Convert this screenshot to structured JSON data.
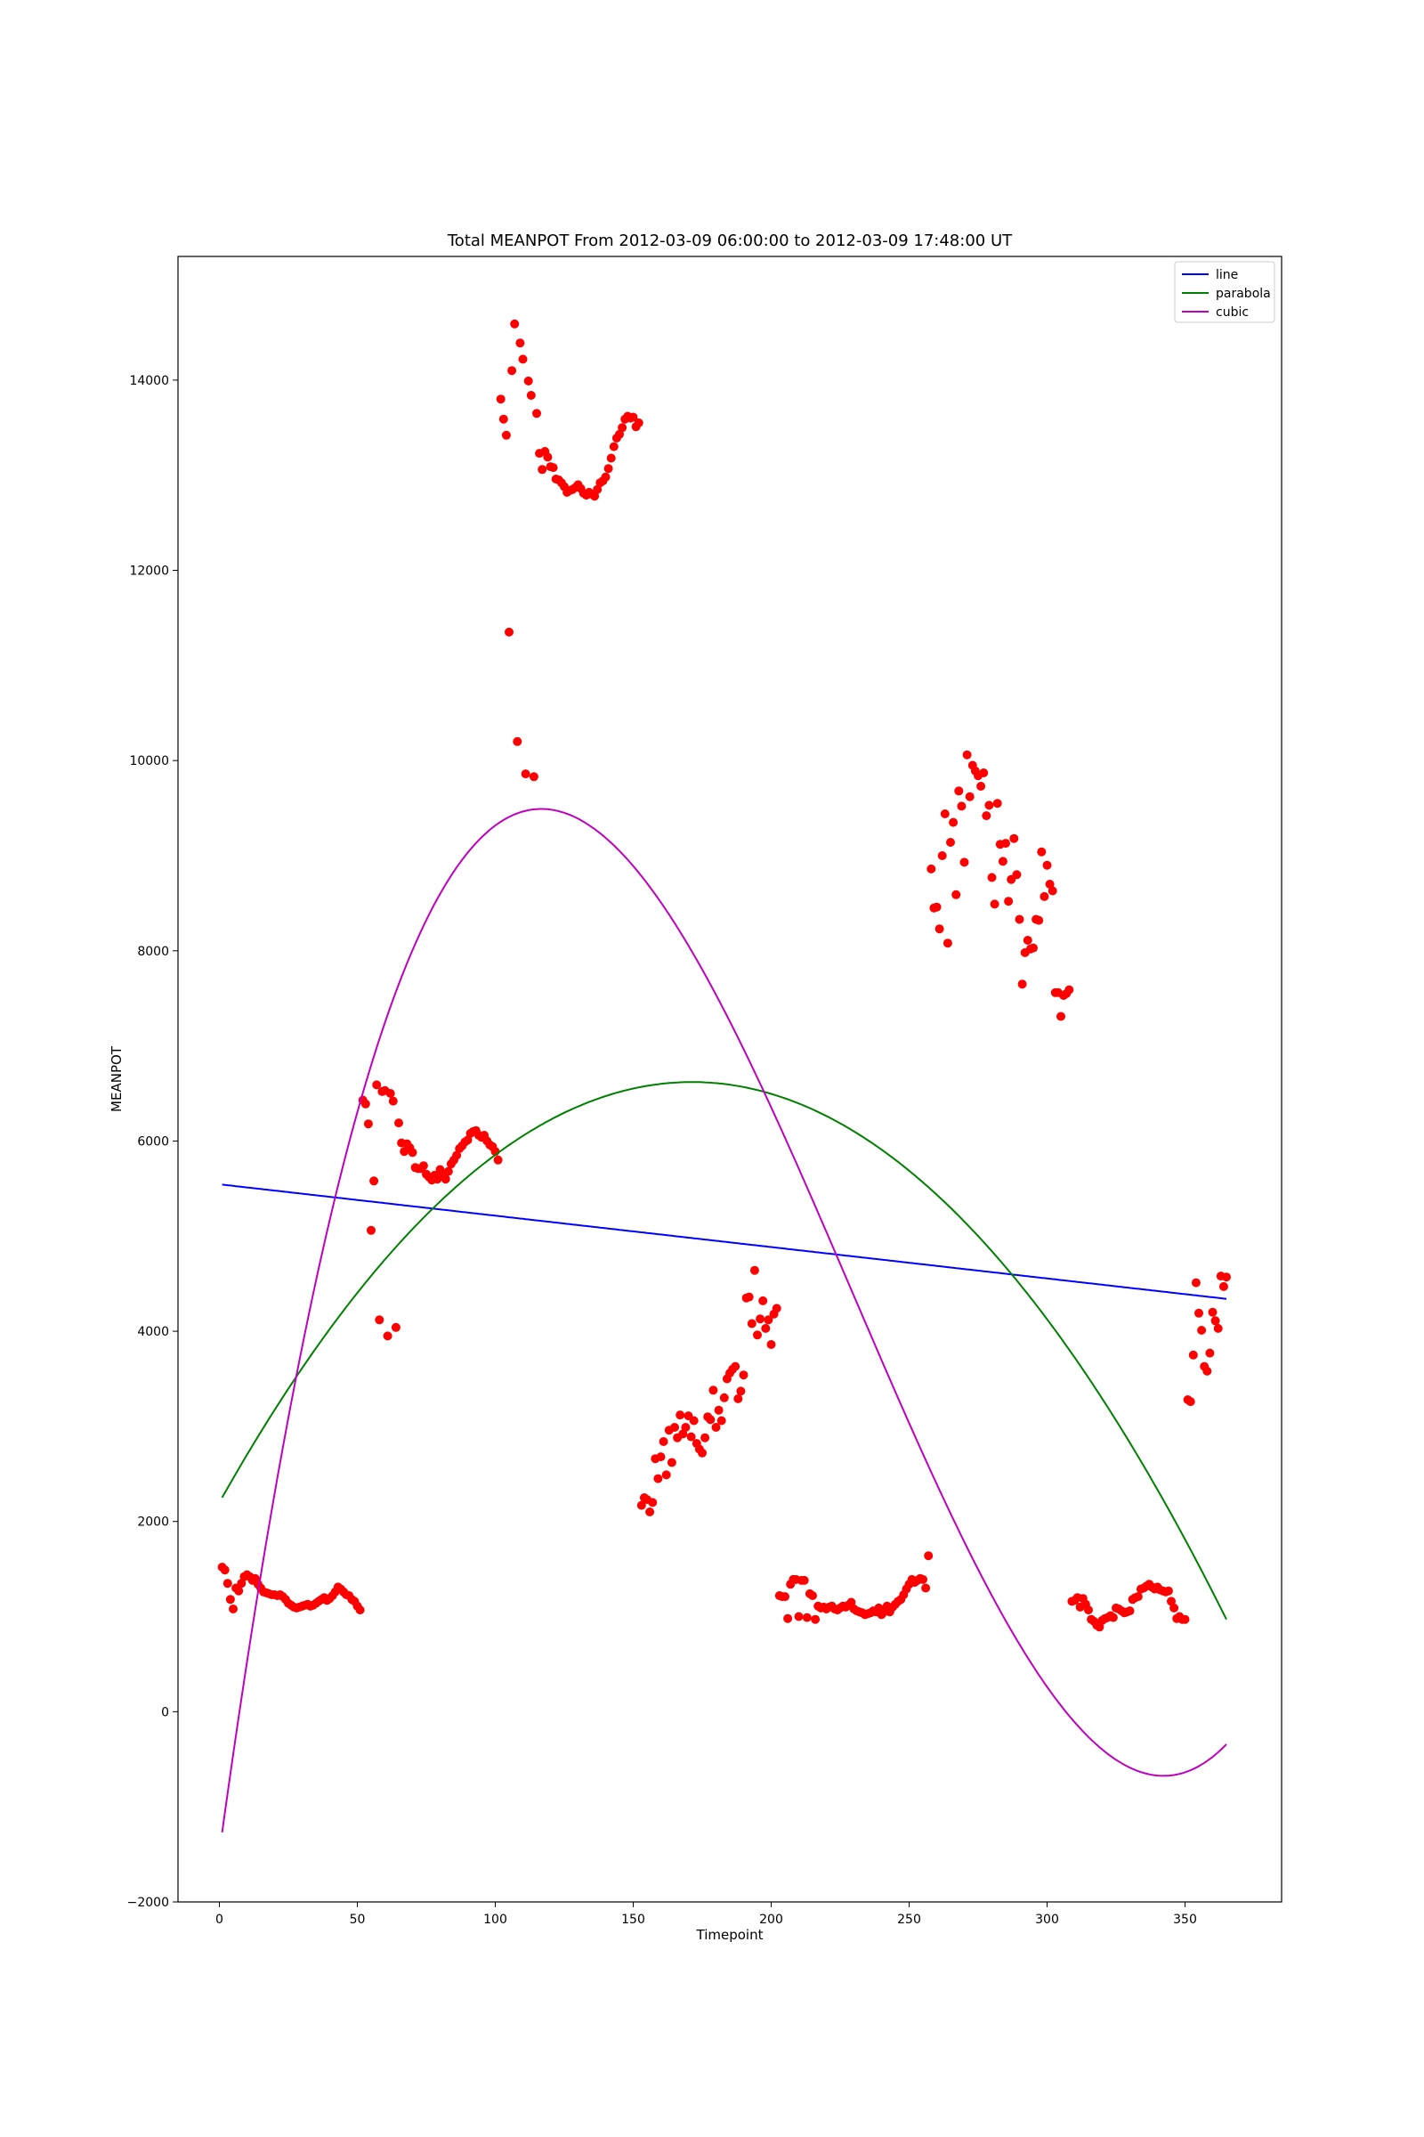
{
  "chart_data": {
    "type": "scatter",
    "title": "Total MEANPOT From 2012-03-09 06:00:00 to 2012-03-09 17:48:00 UT",
    "xlabel": "Timepoint",
    "ylabel": "MEANPOT",
    "xlim": [
      -15,
      385
    ],
    "ylim": [
      -2000,
      15300
    ],
    "xticks": [
      0,
      50,
      100,
      150,
      200,
      250,
      300,
      350
    ],
    "yticks": [
      -2000,
      0,
      2000,
      4000,
      6000,
      8000,
      10000,
      12000,
      14000
    ],
    "xtick_labels": [
      "0",
      "50",
      "100",
      "150",
      "200",
      "250",
      "300",
      "350"
    ],
    "ytick_labels": [
      "−2000",
      "0",
      "2000",
      "4000",
      "6000",
      "8000",
      "10000",
      "12000",
      "14000"
    ],
    "grid": false,
    "legend_position": "top-right",
    "scatter_color": "#ff0000",
    "points": [
      [
        1,
        1520
      ],
      [
        2,
        1490
      ],
      [
        3,
        1350
      ],
      [
        4,
        1180
      ],
      [
        5,
        1080
      ],
      [
        6,
        1300
      ],
      [
        7,
        1270
      ],
      [
        8,
        1350
      ],
      [
        9,
        1420
      ],
      [
        10,
        1440
      ],
      [
        11,
        1420
      ],
      [
        12,
        1380
      ],
      [
        13,
        1400
      ],
      [
        14,
        1340
      ],
      [
        15,
        1300
      ],
      [
        16,
        1260
      ],
      [
        17,
        1250
      ],
      [
        18,
        1240
      ],
      [
        19,
        1230
      ],
      [
        20,
        1230
      ],
      [
        21,
        1220
      ],
      [
        22,
        1230
      ],
      [
        23,
        1210
      ],
      [
        24,
        1180
      ],
      [
        25,
        1140
      ],
      [
        26,
        1120
      ],
      [
        27,
        1100
      ],
      [
        28,
        1090
      ],
      [
        29,
        1100
      ],
      [
        30,
        1110
      ],
      [
        31,
        1120
      ],
      [
        32,
        1130
      ],
      [
        33,
        1110
      ],
      [
        34,
        1120
      ],
      [
        35,
        1140
      ],
      [
        36,
        1160
      ],
      [
        37,
        1180
      ],
      [
        38,
        1200
      ],
      [
        39,
        1170
      ],
      [
        40,
        1190
      ],
      [
        41,
        1220
      ],
      [
        42,
        1260
      ],
      [
        43,
        1310
      ],
      [
        44,
        1290
      ],
      [
        45,
        1260
      ],
      [
        46,
        1230
      ],
      [
        47,
        1220
      ],
      [
        48,
        1180
      ],
      [
        49,
        1160
      ],
      [
        50,
        1110
      ],
      [
        51,
        1070
      ],
      [
        52,
        6430
      ],
      [
        53,
        6390
      ],
      [
        54,
        6180
      ],
      [
        55,
        5060
      ],
      [
        56,
        5580
      ],
      [
        57,
        6590
      ],
      [
        58,
        4120
      ],
      [
        59,
        6520
      ],
      [
        60,
        6530
      ],
      [
        61,
        3950
      ],
      [
        62,
        6500
      ],
      [
        63,
        6420
      ],
      [
        64,
        4040
      ],
      [
        65,
        6190
      ],
      [
        66,
        5980
      ],
      [
        67,
        5890
      ],
      [
        68,
        5970
      ],
      [
        69,
        5930
      ],
      [
        70,
        5880
      ],
      [
        71,
        5720
      ],
      [
        72,
        5710
      ],
      [
        73,
        5710
      ],
      [
        74,
        5740
      ],
      [
        75,
        5650
      ],
      [
        76,
        5620
      ],
      [
        77,
        5590
      ],
      [
        78,
        5640
      ],
      [
        79,
        5600
      ],
      [
        80,
        5700
      ],
      [
        81,
        5650
      ],
      [
        82,
        5600
      ],
      [
        83,
        5680
      ],
      [
        84,
        5760
      ],
      [
        85,
        5800
      ],
      [
        86,
        5850
      ],
      [
        87,
        5920
      ],
      [
        88,
        5950
      ],
      [
        89,
        5990
      ],
      [
        90,
        6010
      ],
      [
        91,
        6080
      ],
      [
        92,
        6100
      ],
      [
        93,
        6110
      ],
      [
        94,
        6060
      ],
      [
        95,
        6040
      ],
      [
        96,
        6060
      ],
      [
        97,
        6000
      ],
      [
        98,
        5960
      ],
      [
        99,
        5940
      ],
      [
        100,
        5890
      ],
      [
        101,
        5800
      ],
      [
        102,
        13800
      ],
      [
        103,
        13590
      ],
      [
        104,
        13420
      ],
      [
        105,
        11350
      ],
      [
        106,
        14100
      ],
      [
        107,
        14590
      ],
      [
        108,
        10200
      ],
      [
        109,
        14390
      ],
      [
        110,
        14220
      ],
      [
        111,
        9860
      ],
      [
        112,
        13990
      ],
      [
        113,
        13840
      ],
      [
        114,
        9830
      ],
      [
        115,
        13650
      ],
      [
        116,
        13230
      ],
      [
        117,
        13060
      ],
      [
        118,
        13250
      ],
      [
        119,
        13190
      ],
      [
        120,
        13090
      ],
      [
        121,
        13080
      ],
      [
        122,
        12960
      ],
      [
        123,
        12950
      ],
      [
        124,
        12920
      ],
      [
        125,
        12880
      ],
      [
        126,
        12820
      ],
      [
        127,
        12840
      ],
      [
        128,
        12850
      ],
      [
        129,
        12870
      ],
      [
        130,
        12900
      ],
      [
        131,
        12860
      ],
      [
        132,
        12810
      ],
      [
        133,
        12790
      ],
      [
        134,
        12820
      ],
      [
        135,
        12800
      ],
      [
        136,
        12780
      ],
      [
        137,
        12850
      ],
      [
        138,
        12920
      ],
      [
        139,
        12940
      ],
      [
        140,
        12980
      ],
      [
        141,
        13070
      ],
      [
        142,
        13180
      ],
      [
        143,
        13300
      ],
      [
        144,
        13390
      ],
      [
        145,
        13430
      ],
      [
        146,
        13500
      ],
      [
        147,
        13590
      ],
      [
        148,
        13620
      ],
      [
        149,
        13600
      ],
      [
        150,
        13610
      ],
      [
        151,
        13510
      ],
      [
        152,
        13550
      ],
      [
        153,
        2170
      ],
      [
        154,
        2250
      ],
      [
        155,
        2230
      ],
      [
        156,
        2100
      ],
      [
        157,
        2200
      ],
      [
        158,
        2660
      ],
      [
        159,
        2450
      ],
      [
        160,
        2680
      ],
      [
        161,
        2840
      ],
      [
        162,
        2490
      ],
      [
        163,
        2960
      ],
      [
        164,
        2620
      ],
      [
        165,
        2990
      ],
      [
        166,
        2880
      ],
      [
        167,
        3120
      ],
      [
        168,
        2920
      ],
      [
        169,
        2990
      ],
      [
        170,
        3110
      ],
      [
        171,
        2890
      ],
      [
        172,
        3060
      ],
      [
        173,
        2820
      ],
      [
        174,
        2760
      ],
      [
        175,
        2720
      ],
      [
        176,
        2880
      ],
      [
        177,
        3100
      ],
      [
        178,
        3070
      ],
      [
        179,
        3380
      ],
      [
        180,
        2990
      ],
      [
        181,
        3170
      ],
      [
        182,
        3060
      ],
      [
        183,
        3300
      ],
      [
        184,
        3500
      ],
      [
        185,
        3560
      ],
      [
        186,
        3600
      ],
      [
        187,
        3630
      ],
      [
        188,
        3290
      ],
      [
        189,
        3370
      ],
      [
        190,
        3540
      ],
      [
        191,
        4350
      ],
      [
        192,
        4360
      ],
      [
        193,
        4080
      ],
      [
        194,
        4640
      ],
      [
        195,
        3960
      ],
      [
        196,
        4130
      ],
      [
        197,
        4320
      ],
      [
        198,
        4030
      ],
      [
        199,
        4120
      ],
      [
        200,
        3860
      ],
      [
        201,
        4180
      ],
      [
        202,
        4240
      ],
      [
        203,
        1220
      ],
      [
        204,
        1210
      ],
      [
        205,
        1210
      ],
      [
        206,
        980
      ],
      [
        207,
        1340
      ],
      [
        208,
        1390
      ],
      [
        209,
        1390
      ],
      [
        210,
        1000
      ],
      [
        211,
        1380
      ],
      [
        212,
        1380
      ],
      [
        213,
        990
      ],
      [
        214,
        1240
      ],
      [
        215,
        1220
      ],
      [
        216,
        970
      ],
      [
        217,
        1110
      ],
      [
        218,
        1090
      ],
      [
        219,
        1100
      ],
      [
        220,
        1080
      ],
      [
        221,
        1100
      ],
      [
        222,
        1110
      ],
      [
        223,
        1080
      ],
      [
        224,
        1070
      ],
      [
        225,
        1090
      ],
      [
        226,
        1110
      ],
      [
        227,
        1100
      ],
      [
        228,
        1120
      ],
      [
        229,
        1150
      ],
      [
        230,
        1080
      ],
      [
        231,
        1060
      ],
      [
        232,
        1050
      ],
      [
        233,
        1040
      ],
      [
        234,
        1020
      ],
      [
        235,
        1030
      ],
      [
        236,
        1040
      ],
      [
        237,
        1060
      ],
      [
        238,
        1050
      ],
      [
        239,
        1090
      ],
      [
        240,
        1020
      ],
      [
        241,
        1050
      ],
      [
        242,
        1110
      ],
      [
        243,
        1050
      ],
      [
        244,
        1100
      ],
      [
        245,
        1130
      ],
      [
        246,
        1160
      ],
      [
        247,
        1180
      ],
      [
        248,
        1230
      ],
      [
        249,
        1290
      ],
      [
        250,
        1340
      ],
      [
        251,
        1390
      ],
      [
        252,
        1360
      ],
      [
        253,
        1380
      ],
      [
        254,
        1400
      ],
      [
        255,
        1390
      ],
      [
        256,
        1300
      ],
      [
        257,
        1640
      ],
      [
        258,
        8860
      ],
      [
        259,
        8450
      ],
      [
        260,
        8460
      ],
      [
        261,
        8230
      ],
      [
        262,
        9000
      ],
      [
        263,
        9440
      ],
      [
        264,
        8080
      ],
      [
        265,
        9140
      ],
      [
        266,
        9350
      ],
      [
        267,
        8590
      ],
      [
        268,
        9680
      ],
      [
        269,
        9520
      ],
      [
        270,
        8930
      ],
      [
        271,
        10060
      ],
      [
        272,
        9620
      ],
      [
        273,
        9950
      ],
      [
        274,
        9890
      ],
      [
        275,
        9840
      ],
      [
        276,
        9730
      ],
      [
        277,
        9870
      ],
      [
        278,
        9420
      ],
      [
        279,
        9530
      ],
      [
        280,
        8770
      ],
      [
        281,
        8490
      ],
      [
        282,
        9550
      ],
      [
        283,
        9120
      ],
      [
        284,
        8940
      ],
      [
        285,
        9130
      ],
      [
        286,
        8520
      ],
      [
        287,
        8750
      ],
      [
        288,
        9180
      ],
      [
        289,
        8800
      ],
      [
        290,
        8330
      ],
      [
        291,
        7650
      ],
      [
        292,
        7980
      ],
      [
        293,
        8110
      ],
      [
        294,
        8020
      ],
      [
        295,
        8030
      ],
      [
        296,
        8330
      ],
      [
        297,
        8320
      ],
      [
        298,
        9040
      ],
      [
        299,
        8570
      ],
      [
        300,
        8900
      ],
      [
        301,
        8700
      ],
      [
        302,
        8630
      ],
      [
        303,
        7560
      ],
      [
        304,
        7560
      ],
      [
        305,
        7310
      ],
      [
        306,
        7530
      ],
      [
        307,
        7550
      ],
      [
        308,
        7590
      ],
      [
        309,
        1160
      ],
      [
        310,
        1170
      ],
      [
        311,
        1200
      ],
      [
        312,
        1100
      ],
      [
        313,
        1190
      ],
      [
        314,
        1130
      ],
      [
        315,
        1070
      ],
      [
        316,
        970
      ],
      [
        317,
        950
      ],
      [
        318,
        910
      ],
      [
        319,
        890
      ],
      [
        320,
        960
      ],
      [
        321,
        980
      ],
      [
        322,
        990
      ],
      [
        323,
        1010
      ],
      [
        324,
        990
      ],
      [
        325,
        1090
      ],
      [
        326,
        1080
      ],
      [
        327,
        1060
      ],
      [
        328,
        1040
      ],
      [
        329,
        1050
      ],
      [
        330,
        1060
      ],
      [
        331,
        1180
      ],
      [
        332,
        1200
      ],
      [
        333,
        1210
      ],
      [
        334,
        1290
      ],
      [
        335,
        1300
      ],
      [
        336,
        1320
      ],
      [
        337,
        1340
      ],
      [
        338,
        1310
      ],
      [
        339,
        1290
      ],
      [
        340,
        1310
      ],
      [
        341,
        1280
      ],
      [
        342,
        1270
      ],
      [
        343,
        1260
      ],
      [
        344,
        1270
      ],
      [
        345,
        1160
      ],
      [
        346,
        1090
      ],
      [
        347,
        980
      ],
      [
        348,
        1000
      ],
      [
        349,
        970
      ],
      [
        350,
        970
      ],
      [
        351,
        3280
      ],
      [
        352,
        3260
      ],
      [
        353,
        3750
      ],
      [
        354,
        4510
      ],
      [
        355,
        4190
      ],
      [
        356,
        4010
      ],
      [
        357,
        3630
      ],
      [
        358,
        3580
      ],
      [
        359,
        3770
      ],
      [
        360,
        4200
      ],
      [
        361,
        4110
      ],
      [
        362,
        4030
      ],
      [
        363,
        4580
      ],
      [
        364,
        4470
      ],
      [
        365,
        4570
      ]
    ],
    "series": [
      {
        "name": "line",
        "color": "#0000ff",
        "type": "polynomial",
        "coefficients": [
          5545,
          -3.3
        ]
      },
      {
        "name": "parabola",
        "color": "#008000",
        "type": "polynomial",
        "coefficients": [
          2200,
          51.6,
          -0.1506
        ]
      },
      {
        "name": "cubic",
        "color": "#bf00bf",
        "type": "polynomial",
        "coefficients": [
          -1480,
          212.2,
          -1.2195,
          0.0017717
        ]
      }
    ],
    "fit_x_range": [
      1,
      365
    ]
  }
}
